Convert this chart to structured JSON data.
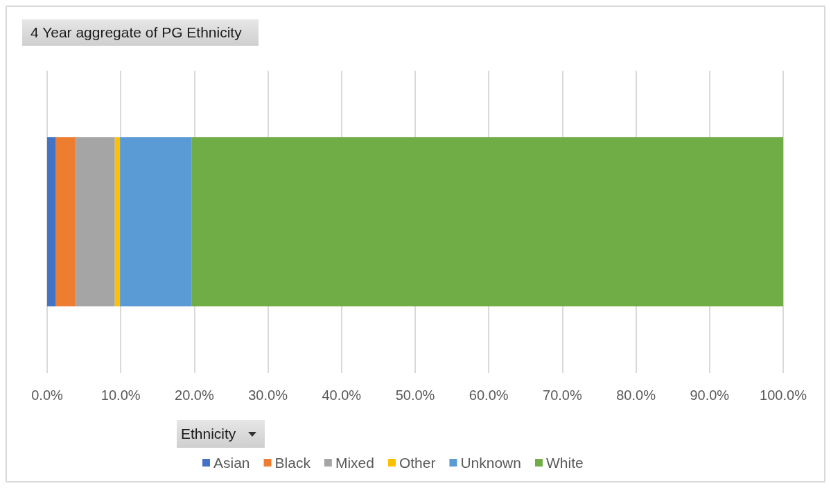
{
  "chart_data": {
    "type": "bar",
    "orientation": "horizontal",
    "stacked": true,
    "title": "4 Year aggregate of PG Ethnicity",
    "legend_title": "Ethnicity",
    "categories": [
      null
    ],
    "series": [
      {
        "name": "Asian",
        "color": "#4472c4",
        "values": [
          1.2
        ]
      },
      {
        "name": "Black",
        "color": "#ed7d31",
        "values": [
          2.7
        ]
      },
      {
        "name": "Mixed",
        "color": "#a5a5a5",
        "values": [
          5.3
        ]
      },
      {
        "name": "Other",
        "color": "#ffc000",
        "values": [
          0.7
        ]
      },
      {
        "name": "Unknown",
        "color": "#5b9bd5",
        "values": [
          9.7
        ]
      },
      {
        "name": "White",
        "color": "#70ad47",
        "values": [
          80.4
        ]
      }
    ],
    "xlim": [
      0,
      100
    ],
    "xticks": [
      {
        "value": 0,
        "label": "0.0%"
      },
      {
        "value": 10,
        "label": "10.0%"
      },
      {
        "value": 20,
        "label": "20.0%"
      },
      {
        "value": 30,
        "label": "30.0%"
      },
      {
        "value": 40,
        "label": "40.0%"
      },
      {
        "value": 50,
        "label": "50.0%"
      },
      {
        "value": 60,
        "label": "60.0%"
      },
      {
        "value": 70,
        "label": "70.0%"
      },
      {
        "value": 80,
        "label": "80.0%"
      },
      {
        "value": 90,
        "label": "90.0%"
      },
      {
        "value": 100,
        "label": "100.0%"
      }
    ],
    "grid": "x",
    "legend": "bottom"
  }
}
